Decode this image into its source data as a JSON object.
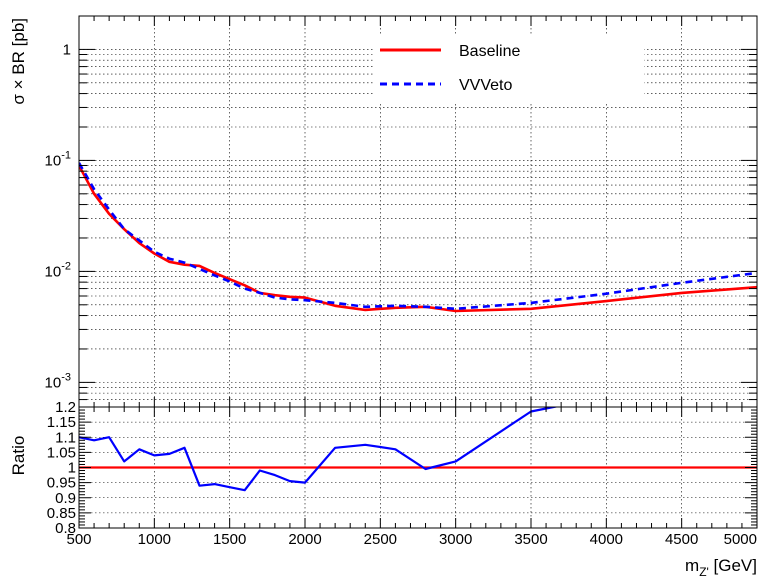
{
  "chart_data": [
    {
      "type": "line",
      "panel": "top",
      "log_y": true,
      "grid": true,
      "xlim": [
        500,
        5000
      ],
      "ylim": [
        0.0006,
        2
      ],
      "ylabel": "σ × BR [pb]",
      "y_ticks": [
        {
          "value": 1,
          "label": "1"
        },
        {
          "value": 0.1,
          "label": "10^{-1}"
        },
        {
          "value": 0.01,
          "label": "10^{-2}"
        },
        {
          "value": 0.001,
          "label": "10^{-3}"
        }
      ],
      "legend": {
        "position": "top-right"
      },
      "series": [
        {
          "name": "Baseline",
          "color": "#ff0000",
          "style": "solid",
          "x": [
            500,
            600,
            700,
            800,
            900,
            1000,
            1100,
            1200,
            1300,
            1400,
            1500,
            1600,
            1700,
            1800,
            1900,
            2000,
            2200,
            2400,
            2600,
            2800,
            3000,
            3500,
            4000,
            4500,
            5000
          ],
          "y": [
            0.09,
            0.05,
            0.033,
            0.024,
            0.018,
            0.0145,
            0.0122,
            0.0115,
            0.0112,
            0.0097,
            0.0085,
            0.0075,
            0.0064,
            0.0061,
            0.0059,
            0.0058,
            0.0049,
            0.0045,
            0.0047,
            0.0048,
            0.0044,
            0.0046,
            0.0054,
            0.0064,
            0.0072
          ]
        },
        {
          "name": "VVVeto",
          "color": "#0000ff",
          "style": "dashed",
          "x": [
            500,
            600,
            700,
            800,
            900,
            1000,
            1100,
            1200,
            1300,
            1400,
            1500,
            1600,
            1700,
            1800,
            1900,
            2000,
            2200,
            2400,
            2600,
            2800,
            3000,
            3500,
            4000,
            4500,
            5000
          ],
          "y": [
            0.095,
            0.055,
            0.036,
            0.024,
            0.019,
            0.015,
            0.013,
            0.012,
            0.0105,
            0.0092,
            0.0081,
            0.007,
            0.0064,
            0.0058,
            0.0056,
            0.0055,
            0.0052,
            0.0048,
            0.0049,
            0.0048,
            0.0046,
            0.0052,
            0.0063,
            0.0079,
            0.0097
          ]
        }
      ]
    },
    {
      "type": "line",
      "panel": "bottom",
      "grid": true,
      "xlim": [
        500,
        5000
      ],
      "ylim": [
        0.8,
        1.2
      ],
      "xlabel": "m_{Z'} [GeV]",
      "ylabel": "Ratio",
      "x_ticks": [
        500,
        1000,
        1500,
        2000,
        2500,
        3000,
        3500,
        4000,
        4500,
        5000
      ],
      "y_ticks": [
        "0.8",
        "0.85",
        "0.9",
        "0.95",
        "1",
        "1.05",
        "1.1",
        "1.15",
        "1.2"
      ],
      "series": [
        {
          "name": "",
          "color": "#ff0000",
          "style": "solid",
          "x": [
            500,
            5000
          ],
          "y": [
            1.0,
            1.0
          ]
        },
        {
          "name": "",
          "color": "#0000ff",
          "style": "solid",
          "x": [
            500,
            600,
            700,
            800,
            900,
            1000,
            1100,
            1200,
            1300,
            1400,
            1500,
            1600,
            1700,
            1800,
            1900,
            2000,
            2200,
            2400,
            2600,
            2800,
            3000,
            3500,
            3700
          ],
          "y": [
            1.1,
            1.09,
            1.1,
            1.02,
            1.06,
            1.04,
            1.045,
            1.065,
            0.94,
            0.945,
            0.935,
            0.925,
            0.99,
            0.975,
            0.955,
            0.95,
            1.065,
            1.075,
            1.06,
            0.995,
            1.02,
            1.185,
            1.205
          ]
        }
      ]
    }
  ]
}
